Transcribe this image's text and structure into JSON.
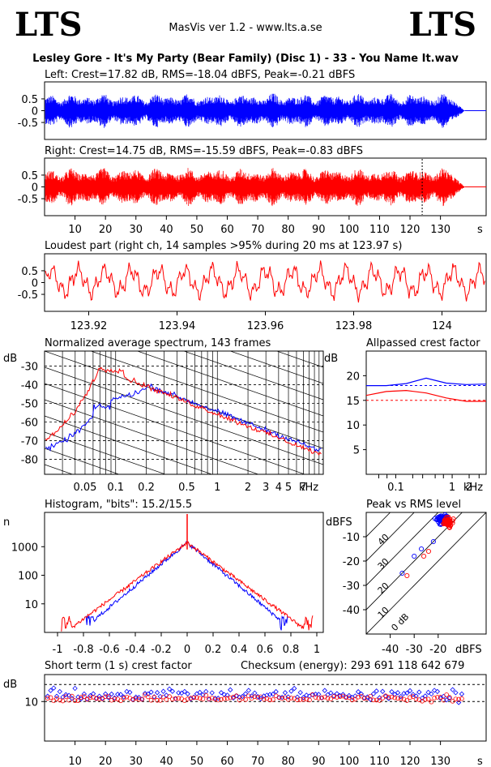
{
  "header": {
    "logo_left": "LTS",
    "logo_right": "LTS",
    "app": "MasVis ver 1.2 - www.lts.a.se",
    "file_title": "Lesley Gore - It's My Party (Bear Family) (Disc 1) - 33 - You Name It.wav"
  },
  "colors": {
    "left": "#0000ff",
    "right": "#ff0000",
    "axis": "#000000"
  },
  "chart_data": [
    {
      "id": "left",
      "type": "line",
      "title": "Left: Crest=17.82 dB, RMS=-18.04 dBFS, Peak=-0.21 dBFS",
      "ylim": [
        -1,
        1
      ],
      "yticks": [
        "0.5",
        "0",
        "-0.5"
      ],
      "duration_s": 138,
      "xlim": [
        0,
        145
      ]
    },
    {
      "id": "right",
      "type": "line",
      "title": "Right: Crest=14.75 dB, RMS=-15.59 dBFS, Peak=-0.83 dBFS",
      "ylim": [
        -1,
        1
      ],
      "yticks": [
        "0.5",
        "0",
        "-0.5"
      ],
      "xticks": [
        "10",
        "20",
        "30",
        "40",
        "50",
        "60",
        "70",
        "80",
        "90",
        "100",
        "110",
        "120",
        "130"
      ],
      "xunit": "s",
      "marker_x": 124,
      "xlim": [
        0,
        145
      ]
    },
    {
      "id": "loudest",
      "type": "line",
      "title": "Loudest part (right ch, 14 samples >95% during 20 ms at 123.97 s)",
      "ylim": [
        -1,
        1
      ],
      "yticks": [
        "0.5",
        "0",
        "-0.5"
      ],
      "xticks": [
        "123.92",
        "123.94",
        "123.96",
        "123.98",
        "124"
      ],
      "xlim": [
        123.91,
        124.01
      ]
    },
    {
      "id": "spectrum",
      "type": "line",
      "title": "Normalized average spectrum, 143 frames",
      "ylabel": "dB",
      "yticks": [
        "-30",
        "-40",
        "-50",
        "-60",
        "-70",
        "-80"
      ],
      "xticks": [
        "0.05",
        "0.1",
        "0.2",
        "0.5",
        "1",
        "2",
        "3",
        "4",
        "5",
        "7"
      ],
      "xunit": "kHz"
    },
    {
      "id": "allpass",
      "type": "line",
      "title": "Allpassed crest factor",
      "ylabel": "dB",
      "yticks": [
        "20",
        "15",
        "10",
        "5"
      ],
      "xticks": [
        "0.1",
        "1",
        "2"
      ],
      "xunit": "kHz",
      "series": [
        {
          "values": [
            18,
            18,
            18.4,
            19.5,
            18.5,
            18.2,
            18.3
          ]
        },
        {
          "values": [
            16,
            16.8,
            17,
            16.5,
            15.5,
            14.8,
            14.8
          ]
        }
      ],
      "refs": [
        18,
        15
      ]
    },
    {
      "id": "histogram",
      "type": "line",
      "title": "Histogram, \"bits\": 15.2/15.5",
      "ylabel": "n",
      "yticks": [
        "1000",
        "100",
        "10"
      ],
      "xticks": [
        "-1",
        "-0.8",
        "-0.6",
        "-0.4",
        "-0.2",
        "0",
        "0.2",
        "0.4",
        "0.6",
        "0.8",
        "1"
      ],
      "xlim": [
        -1.1,
        1.05
      ]
    },
    {
      "id": "peakrms",
      "type": "scatter",
      "title": "Peak vs RMS level",
      "ylabel": "dBFS",
      "xunit": "dBFS",
      "yticks": [
        "-10",
        "-20",
        "-30",
        "-40"
      ],
      "xticks": [
        "-40",
        "-30",
        "-20"
      ],
      "diag_labels": [
        "40",
        "30",
        "20",
        "10",
        "0 dB"
      ],
      "xlim": [
        -50,
        0
      ],
      "ylim": [
        -50,
        0
      ]
    },
    {
      "id": "shortcrest",
      "type": "scatter",
      "title": "Short term (1 s) crest factor",
      "checksum": "Checksum (energy):   293 691 118 642 679",
      "ylabel": "dB",
      "yticks": [
        "10"
      ],
      "xticks": [
        "10",
        "20",
        "30",
        "40",
        "50",
        "60",
        "70",
        "80",
        "90",
        "100",
        "110",
        "120",
        "130"
      ],
      "xunit": "s",
      "xlim": [
        0,
        145
      ]
    }
  ]
}
